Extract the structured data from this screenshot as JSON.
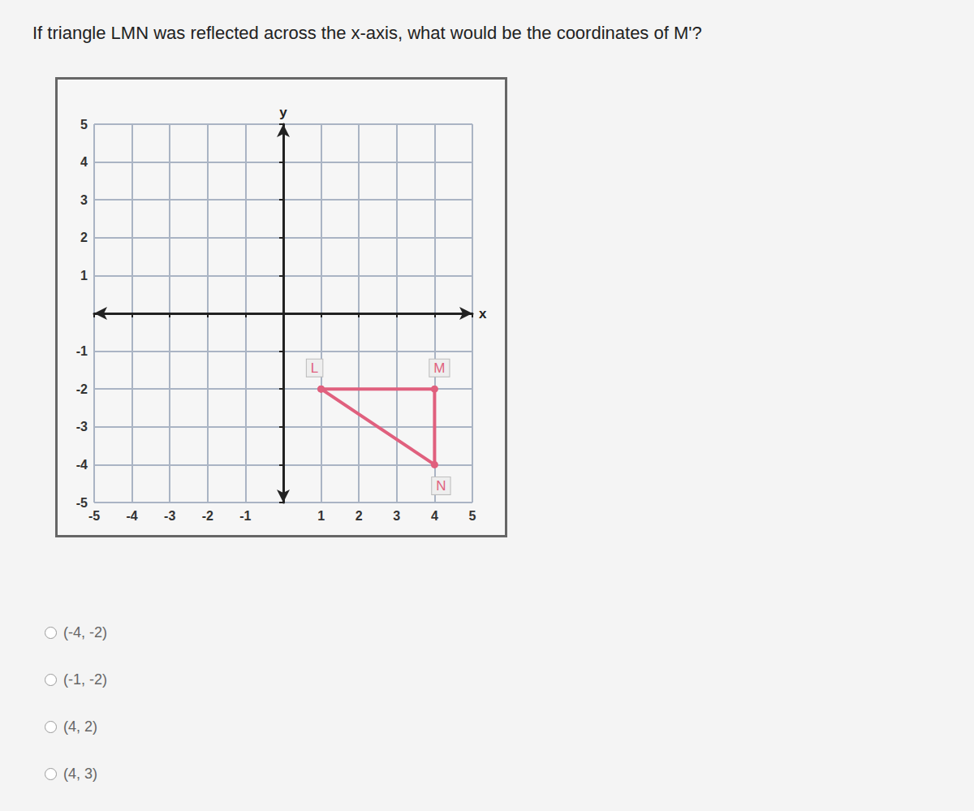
{
  "question": "If triangle LMN was reflected across the x-axis, what would be the coordinates of M'?",
  "chart_data": {
    "type": "line",
    "x_label": "x",
    "y_label": "y",
    "xlim": [
      -5,
      5
    ],
    "ylim": [
      -5,
      5
    ],
    "xticks": [
      -5,
      -4,
      -3,
      -2,
      -1,
      1,
      2,
      3,
      4,
      5
    ],
    "yticks": [
      -5,
      -4,
      -3,
      -2,
      -1,
      1,
      2,
      3,
      4,
      5
    ],
    "grid": true,
    "points": [
      {
        "label": "L",
        "x": 1,
        "y": -2
      },
      {
        "label": "M",
        "x": 4,
        "y": -2
      },
      {
        "label": "N",
        "x": 4,
        "y": -4
      }
    ],
    "color": "#e0607e",
    "marker": "circle"
  },
  "choices": [
    "(-4, -2)",
    "(-1, -2)",
    "(4, 2)",
    "(4, 3)"
  ]
}
